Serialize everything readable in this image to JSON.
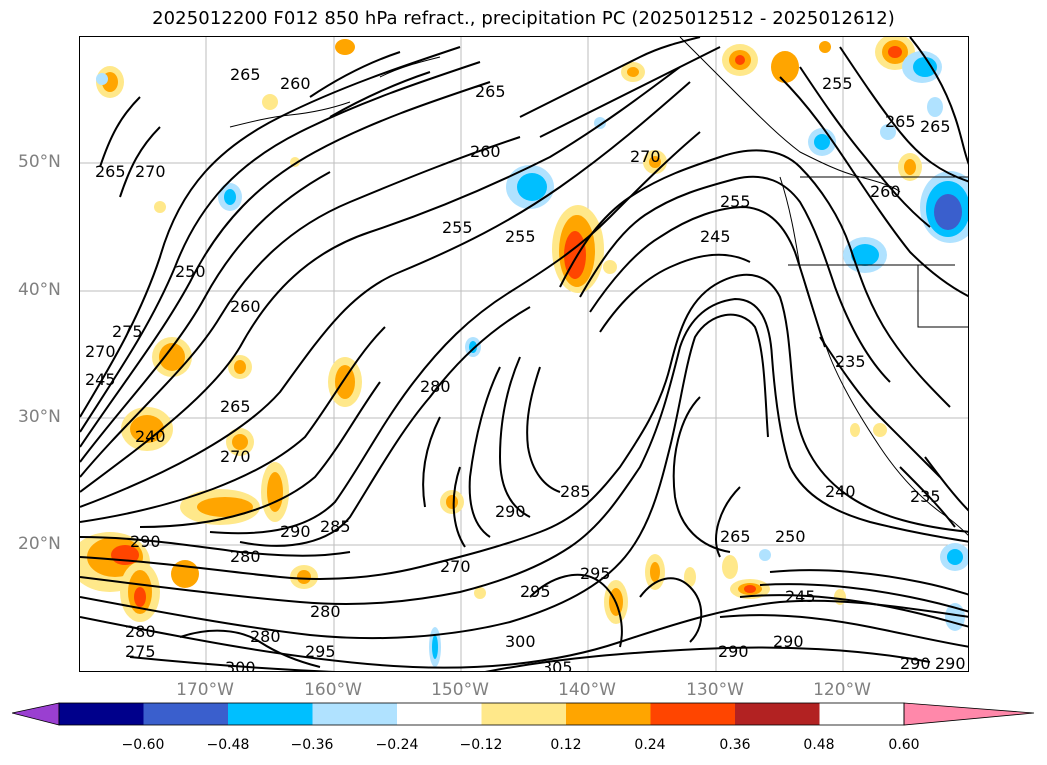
{
  "title": "2025012200 F012 850 hPa refract., precipitation PC (2025012512 - 2025012612)",
  "lat_labels": [
    "50°N",
    "40°N",
    "30°N",
    "20°N"
  ],
  "lon_labels": [
    "170°W",
    "160°W",
    "150°W",
    "140°W",
    "130°W",
    "120°W"
  ],
  "colorbar": {
    "ticks": [
      "−0.60",
      "−0.48",
      "−0.36",
      "−0.24",
      "−0.12",
      "0.12",
      "0.24",
      "0.36",
      "0.48",
      "0.60"
    ],
    "colors": [
      "#9a3fd1",
      "#00008b",
      "#3a5fcd",
      "#00bfff",
      "#b0e2ff",
      "#ffffff",
      "#ffe88a",
      "#ffa500",
      "#ff4500",
      "#b22222",
      "#ff88aa"
    ]
  },
  "contour_labels": [
    "265",
    "260",
    "265",
    "270",
    "265",
    "260",
    "255",
    "250",
    "260",
    "270",
    "275",
    "245",
    "240",
    "265",
    "270",
    "280",
    "255",
    "270",
    "255",
    "245",
    "255",
    "265",
    "260",
    "265",
    "235",
    "240",
    "235",
    "290",
    "285",
    "295",
    "265",
    "250",
    "245",
    "280",
    "280",
    "290",
    "275",
    "280",
    "280",
    "295",
    "300",
    "270",
    "285",
    "290",
    "295",
    "300",
    "305",
    "290",
    "290",
    "290",
    "290"
  ]
}
